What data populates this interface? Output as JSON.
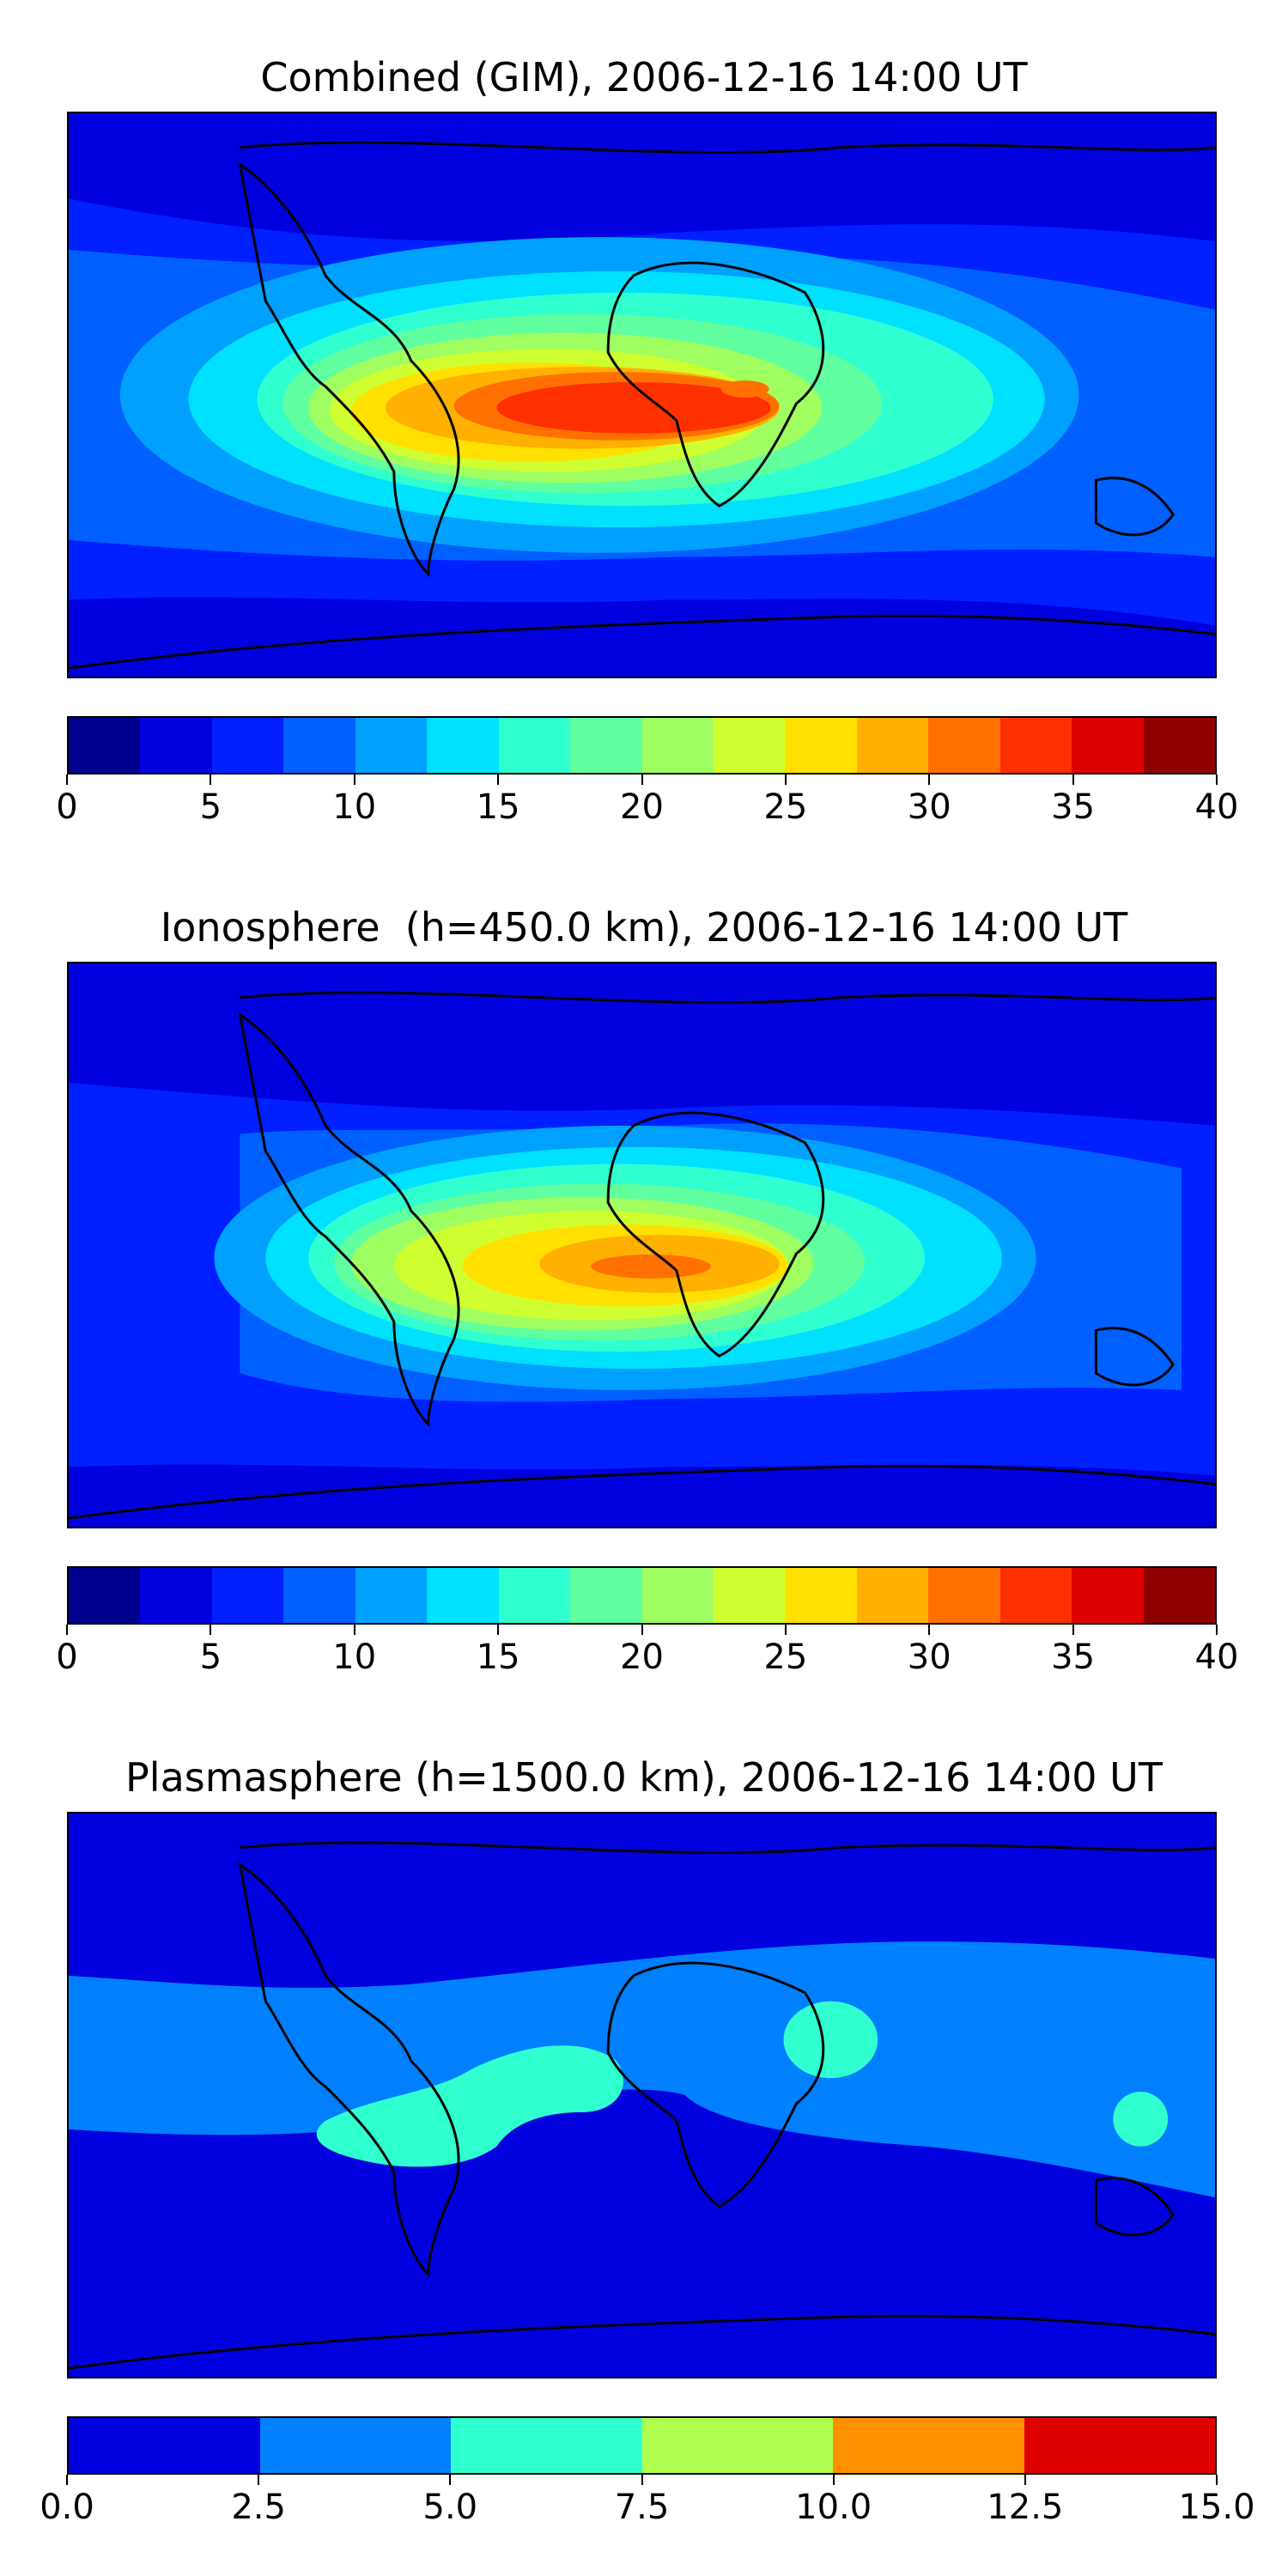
{
  "panels": [
    {
      "title": "Combined (GIM), 2006-12-16 14:00 UT",
      "colorbar": {
        "ticks": [
          "0",
          "5",
          "10",
          "15",
          "20",
          "25",
          "30",
          "35",
          "40"
        ],
        "colors": [
          "#00008f",
          "#0000df",
          "#0020ff",
          "#0060ff",
          "#00a0ff",
          "#00e0ff",
          "#30ffcf",
          "#60ff9f",
          "#a0ff60",
          "#cfff30",
          "#ffe000",
          "#ffb000",
          "#ff7000",
          "#ff3000",
          "#df0000",
          "#8f0000"
        ]
      }
    },
    {
      "title": "Ionosphere  (h=450.0 km), 2006-12-16 14:00 UT",
      "colorbar": {
        "ticks": [
          "0",
          "5",
          "10",
          "15",
          "20",
          "25",
          "30",
          "35",
          "40"
        ],
        "colors": [
          "#00008f",
          "#0000df",
          "#0020ff",
          "#0060ff",
          "#00a0ff",
          "#00e0ff",
          "#30ffcf",
          "#60ff9f",
          "#a0ff60",
          "#cfff30",
          "#ffe000",
          "#ffb000",
          "#ff7000",
          "#ff3000",
          "#df0000",
          "#8f0000"
        ]
      }
    },
    {
      "title": "Plasmasphere (h=1500.0 km), 2006-12-16 14:00 UT",
      "colorbar": {
        "ticks": [
          "0.0",
          "2.5",
          "5.0",
          "7.5",
          "10.0",
          "12.5",
          "15.0"
        ],
        "colors": [
          "#0000df",
          "#0080ff",
          "#30ffcf",
          "#b0ff50",
          "#ff9000",
          "#df0000"
        ]
      }
    }
  ]
}
